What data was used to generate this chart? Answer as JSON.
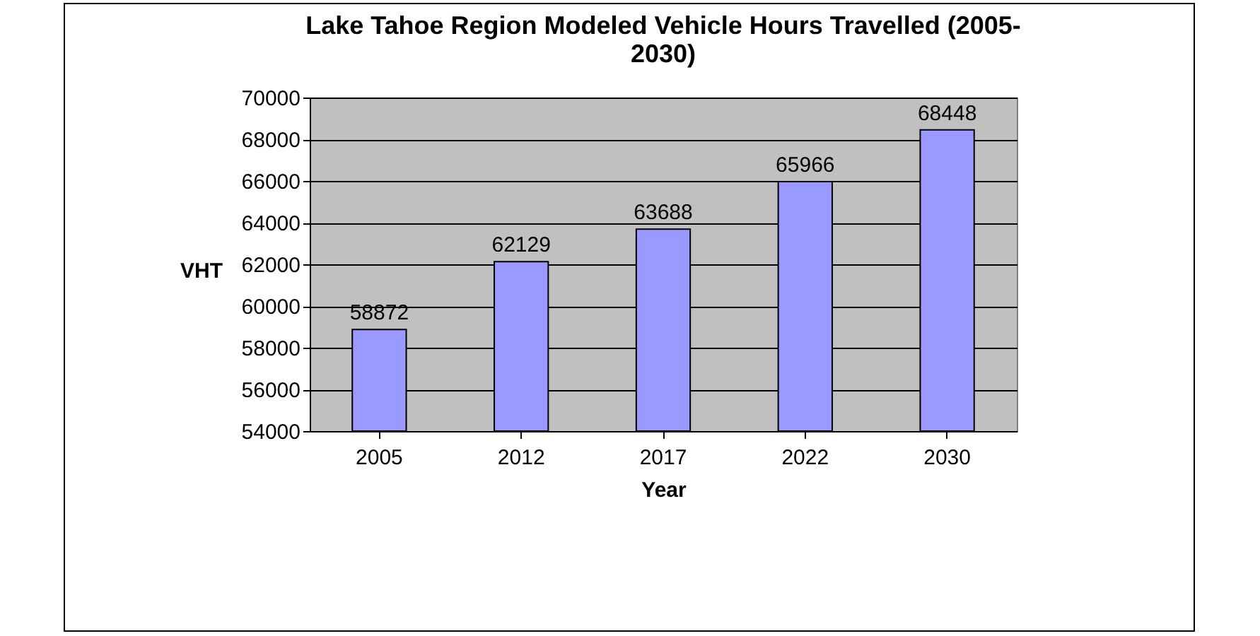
{
  "chart_data": {
    "type": "bar",
    "title": "Lake Tahoe Region Modeled Vehicle Hours Travelled (2005-2030)",
    "xlabel": "Year",
    "ylabel": "VHT",
    "categories": [
      "2005",
      "2012",
      "2017",
      "2022",
      "2030"
    ],
    "values": [
      58872,
      62129,
      63688,
      65966,
      68448
    ],
    "color": "#9999ff",
    "ylim": [
      54000,
      70000
    ],
    "yticks": [
      54000,
      56000,
      58000,
      60000,
      62000,
      64000,
      66000,
      68000,
      70000
    ],
    "grid": "y",
    "data_labels": true
  }
}
